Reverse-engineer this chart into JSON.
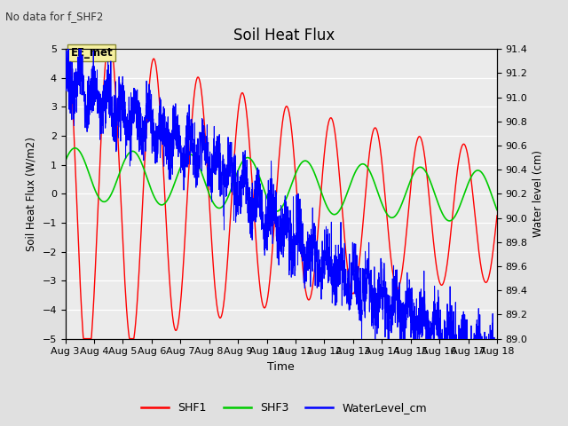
{
  "title": "Soil Heat Flux",
  "subtitle": "No data for f_SHF2",
  "xlabel": "Time",
  "ylabel_left": "Soil Heat Flux (W/m2)",
  "ylabel_right": "Water level (cm)",
  "ylim_left": [
    -5.0,
    5.0
  ],
  "ylim_right": [
    89.0,
    91.4
  ],
  "yticks_left": [
    -5.0,
    -4.0,
    -3.0,
    -2.0,
    -1.0,
    0.0,
    1.0,
    2.0,
    3.0,
    4.0,
    5.0
  ],
  "yticks_right": [
    89.0,
    89.2,
    89.4,
    89.6,
    89.8,
    90.0,
    90.2,
    90.4,
    90.6,
    90.8,
    91.0,
    91.2,
    91.4
  ],
  "xtick_labels": [
    "Aug 3",
    "Aug 4",
    "Aug 5",
    "Aug 6",
    "Aug 7",
    "Aug 8",
    "Aug 9",
    "Aug 10",
    "Aug 11",
    "Aug 12",
    "Aug 13",
    "Aug 14",
    "Aug 15",
    "Aug 16",
    "Aug 17",
    "Aug 18"
  ],
  "annotation_text": "EE_met",
  "shf1_color": "#ff0000",
  "shf3_color": "#00cc00",
  "water_color": "#0000ff",
  "bg_color": "#e0e0e0",
  "plot_bg_color": "#ebebeb",
  "legend_items": [
    "SHF1",
    "SHF3",
    "WaterLevel_cm"
  ],
  "grid_color": "#ffffff"
}
